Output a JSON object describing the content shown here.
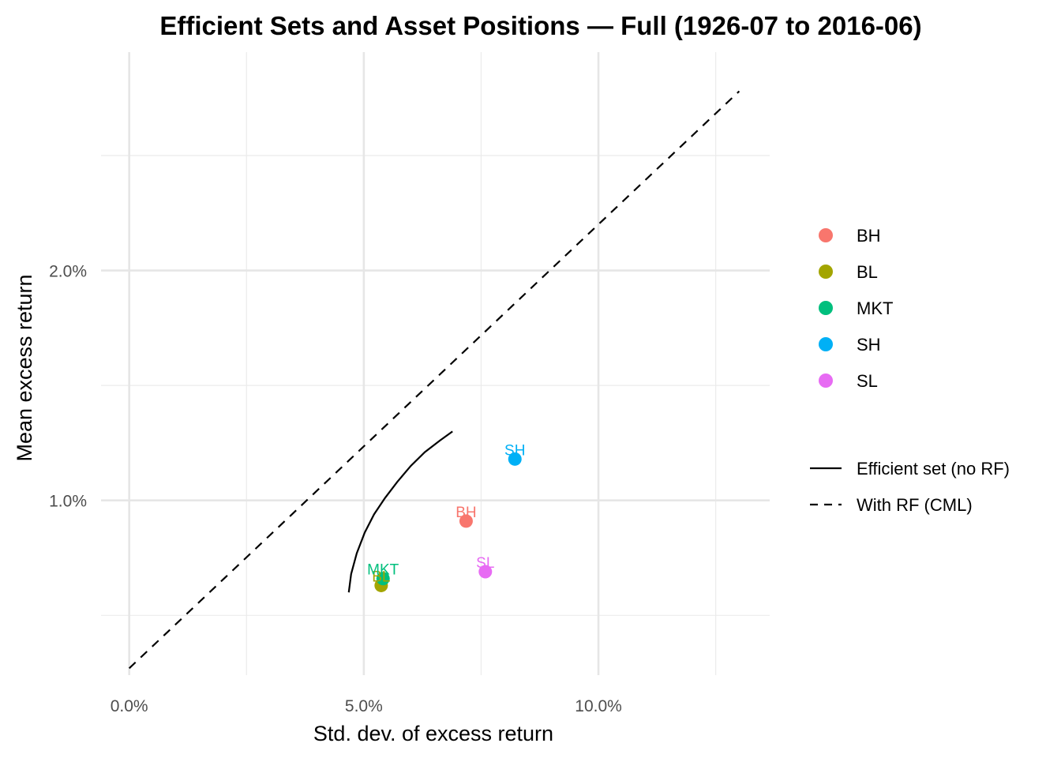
{
  "chart_data": {
    "type": "scatter",
    "title": "Efficient Sets and Asset Positions — Full (1926-07 to 2016-06)",
    "xlabel": "Std. dev. of excess return",
    "ylabel": "Mean excess return",
    "xlim": [
      -0.006,
      0.1365
    ],
    "ylim": [
      0.0024,
      0.0295
    ],
    "x_ticks": [
      {
        "value": 0.0,
        "label": "0.0%"
      },
      {
        "value": 0.05,
        "label": "5.0%"
      },
      {
        "value": 0.1,
        "label": "10.0%"
      }
    ],
    "y_ticks": [
      {
        "value": 0.01,
        "label": "1.0%"
      },
      {
        "value": 0.02,
        "label": "2.0%"
      }
    ],
    "x_minor": [
      0.025,
      0.075,
      0.125
    ],
    "y_minor": [
      0.005,
      0.015,
      0.025
    ],
    "grid": true,
    "legend_position": "right",
    "points": [
      {
        "name": "BH",
        "x": 0.0718,
        "y": 0.0091,
        "color": "#F8766D"
      },
      {
        "name": "BL",
        "x": 0.0537,
        "y": 0.0063,
        "color": "#A3A500"
      },
      {
        "name": "MKT",
        "x": 0.0541,
        "y": 0.0066,
        "color": "#00BF7D"
      },
      {
        "name": "SH",
        "x": 0.0822,
        "y": 0.0118,
        "color": "#00B0F6"
      },
      {
        "name": "SL",
        "x": 0.0759,
        "y": 0.0069,
        "color": "#E76BF3"
      }
    ],
    "lines": [
      {
        "name": "Efficient set (no RF)",
        "style": "solid",
        "points": [
          [
            0.0468,
            0.006
          ],
          [
            0.0473,
            0.0068
          ],
          [
            0.0485,
            0.0077
          ],
          [
            0.0502,
            0.0086
          ],
          [
            0.0522,
            0.0094
          ],
          [
            0.0545,
            0.0101
          ],
          [
            0.0571,
            0.0108
          ],
          [
            0.06,
            0.0115
          ],
          [
            0.063,
            0.0121
          ],
          [
            0.0662,
            0.0126
          ],
          [
            0.0689,
            0.013
          ]
        ]
      },
      {
        "name": "With RF (CML)",
        "style": "dashed",
        "points": [
          [
            0.0,
            0.0027
          ],
          [
            0.13,
            0.0278
          ]
        ]
      }
    ]
  }
}
